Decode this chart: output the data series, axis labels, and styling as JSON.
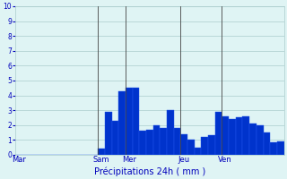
{
  "title": "",
  "xlabel": "Précipitations 24h ( mm )",
  "ylabel": "",
  "ylim": [
    0,
    10
  ],
  "yticks": [
    0,
    1,
    2,
    3,
    4,
    5,
    6,
    7,
    8,
    9,
    10
  ],
  "background_color": "#dff4f4",
  "bar_color": "#0033cc",
  "bar_edge_color": "#2255ee",
  "grid_color": "#aacccc",
  "day_labels": [
    "Mar",
    "Sam",
    "Mer",
    "Jeu",
    "Ven"
  ],
  "day_positions": [
    0,
    12,
    16,
    24,
    30
  ],
  "values": [
    0,
    0,
    0,
    0,
    0,
    0,
    0,
    0,
    0,
    0,
    0,
    0,
    0.4,
    2.9,
    2.3,
    4.3,
    4.5,
    4.5,
    1.6,
    1.7,
    2.0,
    1.8,
    3.0,
    1.8,
    1.4,
    1.0,
    0.5,
    1.2,
    1.3,
    2.9,
    2.6,
    2.4,
    2.5,
    2.6,
    2.1,
    2.0,
    1.5,
    0.85,
    0.9
  ],
  "xlabel_color": "#0000bb",
  "label_color": "#0000bb",
  "tick_color": "#0000bb",
  "vline_positions": [
    12,
    16,
    24,
    30
  ],
  "vline_color": "#444444",
  "figsize": [
    3.2,
    2.0
  ],
  "dpi": 100
}
